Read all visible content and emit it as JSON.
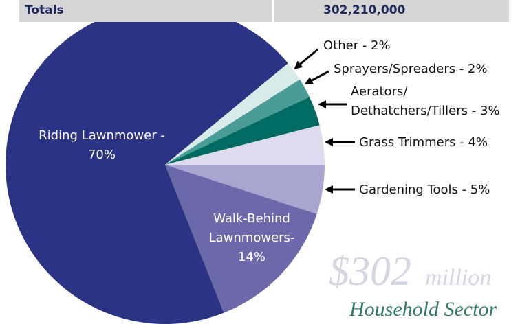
{
  "header": {
    "label": "Totals",
    "value": "302,210,000"
  },
  "chart_data": {
    "type": "pie",
    "categories": [
      "Gardening Tools - 5%",
      "Walk-Behind\nLawnmowers-\n14%",
      "Riding Lawnmower -\n70%",
      "Other - 2%",
      "Sprayers/Spreaders - 2%",
      "Aerators/\nDethatchers/Tillers - 3%",
      "Grass Trimmers - 4%"
    ],
    "values": [
      5,
      14,
      70,
      2,
      2,
      3,
      4
    ],
    "colors": [
      "#a8a6d0",
      "#6c69aa",
      "#2b3384",
      "#d9ebe8",
      "#4a9d96",
      "#006b60",
      "#dcdcec"
    ]
  },
  "watermark": {
    "amount": "$302",
    "unit": "million",
    "sector": "Household Sector"
  }
}
